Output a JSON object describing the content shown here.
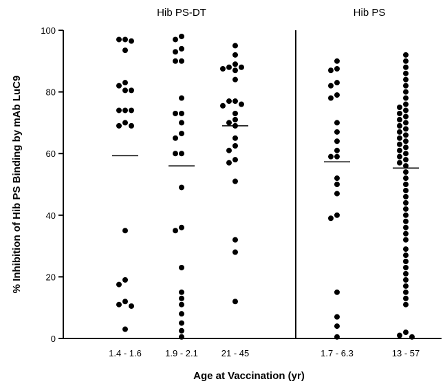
{
  "chart_data": {
    "type": "scatter",
    "ylabel": "% Inhibition of Hib PS Binding by mAb LuC9",
    "xlabel": "Age at Vaccination (yr)",
    "ylim": [
      0,
      100
    ],
    "yticks": [
      0,
      20,
      40,
      60,
      80,
      100
    ],
    "grid": false,
    "groups": [
      {
        "title": "Hib PS-DT",
        "categories": [
          {
            "label": "1.4 - 1.6",
            "median": 59.3,
            "values": [
              97,
              97,
              96.5,
              93.5,
              83,
              82,
              80.5,
              80.5,
              74,
              74,
              74,
              70,
              69,
              69,
              35,
              19,
              17.5,
              12,
              11,
              10.5,
              3
            ]
          },
          {
            "label": "1.9 - 2.1",
            "median": 56,
            "values": [
              98,
              97,
              94,
              93,
              90,
              90,
              78,
              73,
              73,
              70,
              66.5,
              65,
              60,
              60,
              49,
              36,
              35,
              23,
              15,
              13,
              11,
              8,
              5,
              2.5,
              0.5
            ]
          },
          {
            "label": "21 - 45",
            "median": 69,
            "values": [
              95,
              92,
              89,
              88,
              88,
              87.5,
              87,
              84,
              77,
              77,
              76,
              75.5,
              73,
              71,
              70,
              69,
              65,
              62.5,
              61,
              58,
              57,
              51,
              32,
              28,
              12
            ]
          }
        ]
      },
      {
        "title": "Hib PS",
        "categories": [
          {
            "label": "1.7 - 6.3",
            "median": 57.3,
            "values": [
              90,
              87.5,
              87,
              83,
              82,
              79,
              78,
              70,
              67,
              64,
              61,
              59,
              59,
              52,
              50,
              47,
              40,
              39,
              15,
              7,
              4,
              0.5
            ]
          },
          {
            "label": "13 - 57",
            "median": 55.3,
            "values": [
              92,
              90,
              88,
              86,
              84,
              82,
              80,
              78,
              76,
              75,
              74,
              73,
              72,
              71,
              70,
              69,
              68,
              67,
              66,
              65,
              64,
              63,
              62,
              61,
              60,
              59,
              58,
              57,
              56,
              54,
              52,
              50,
              48,
              46,
              44,
              42,
              40,
              38,
              36,
              34,
              32,
              29,
              27,
              25,
              23,
              21,
              19,
              17,
              15,
              13,
              11,
              2,
              1,
              0.5
            ]
          }
        ]
      }
    ]
  }
}
